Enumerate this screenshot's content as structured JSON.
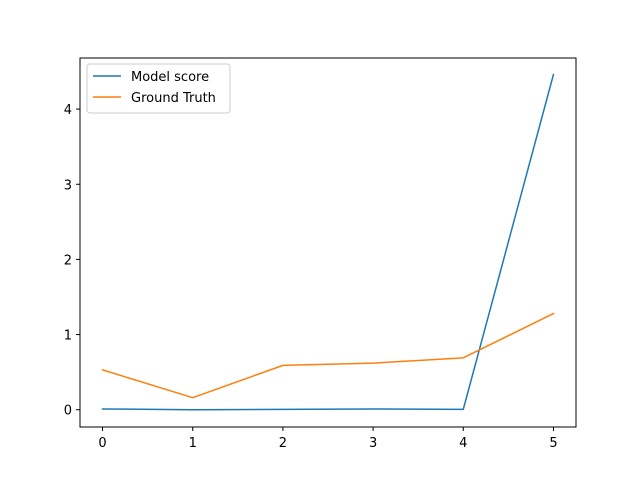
{
  "chart_data": {
    "type": "line",
    "title": "",
    "xlabel": "",
    "ylabel": "",
    "x": [
      0,
      1,
      2,
      3,
      4,
      5
    ],
    "xlim": [
      -0.25,
      5.25
    ],
    "ylim": [
      -0.23,
      4.68
    ],
    "xticks": [
      0,
      1,
      2,
      3,
      4,
      5
    ],
    "yticks": [
      0,
      1,
      2,
      3,
      4
    ],
    "grid": false,
    "legend": "top-left",
    "series": [
      {
        "name": "Model score",
        "color": "#1f77b4",
        "values": [
          0.01,
          0.0,
          0.005,
          0.01,
          0.005,
          4.46
        ]
      },
      {
        "name": "Ground Truth",
        "color": "#ff7f0e",
        "values": [
          0.53,
          0.16,
          0.59,
          0.62,
          0.69,
          1.28
        ]
      }
    ]
  }
}
